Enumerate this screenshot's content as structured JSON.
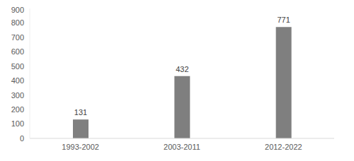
{
  "chart_data": {
    "type": "bar",
    "categories": [
      "1993-2002",
      "2003-2011",
      "2012-2022"
    ],
    "values": [
      131,
      432,
      771
    ],
    "color": "#7f7f7f",
    "ylim": [
      0,
      900
    ],
    "yticks": [
      0,
      100,
      200,
      300,
      400,
      500,
      600,
      700,
      800,
      900
    ],
    "grid": false,
    "data_labels": true
  }
}
